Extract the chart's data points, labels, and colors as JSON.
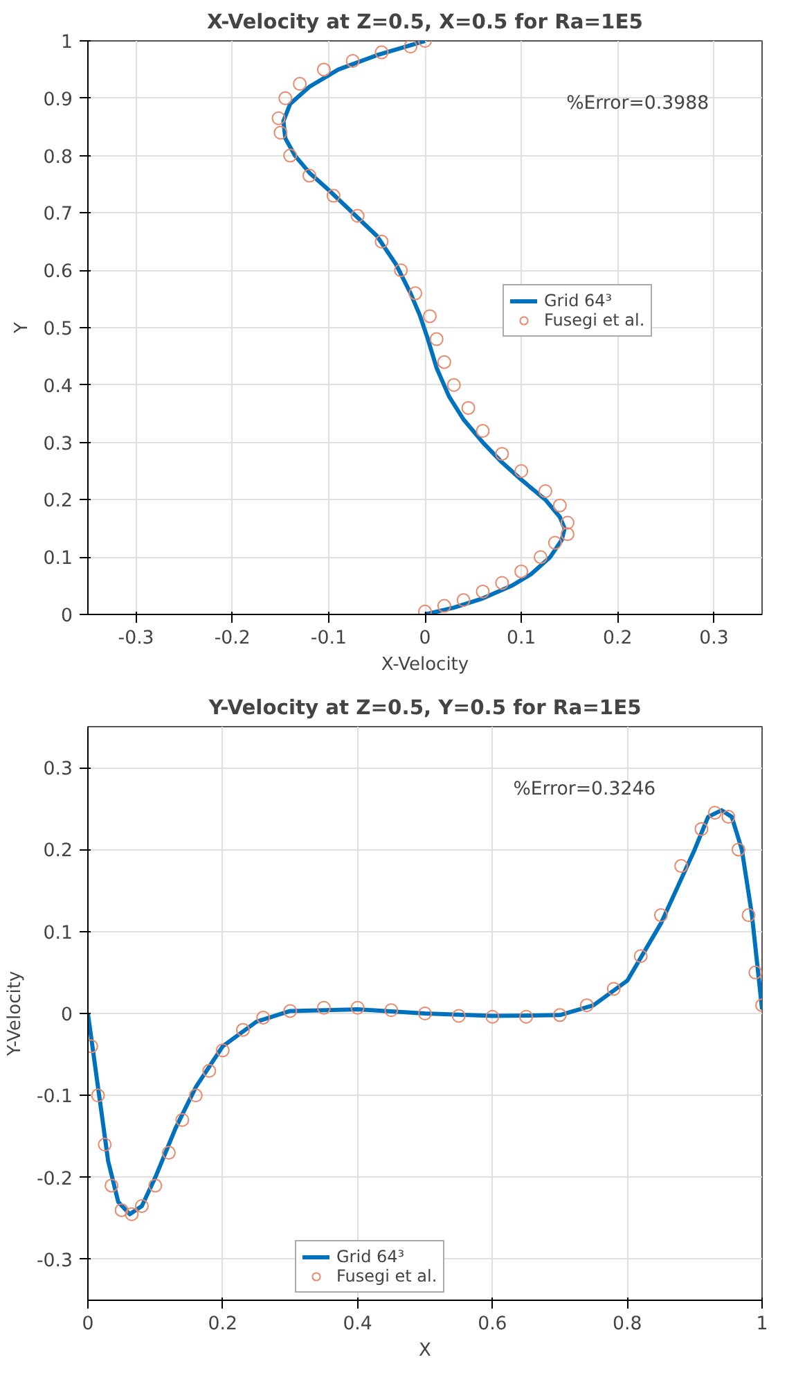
{
  "chart_data": [
    {
      "type": "line",
      "title": "X-Velocity at Z=0.5, X=0.5 for Ra=1E5",
      "xlabel": "X-Velocity",
      "ylabel": "Y",
      "xlim": [
        -0.35,
        0.35
      ],
      "ylim": [
        0,
        1
      ],
      "xticks": [
        -0.3,
        -0.2,
        -0.1,
        0,
        0.1,
        0.2,
        0.3
      ],
      "yticks": [
        0,
        0.1,
        0.2,
        0.3,
        0.4,
        0.5,
        0.6,
        0.7,
        0.8,
        0.9,
        1
      ],
      "grid": true,
      "legend": "right",
      "annotations": [
        "%Error=0.3988"
      ],
      "series": [
        {
          "name": "Grid 64³",
          "color": "#0072bd",
          "marker": "none",
          "line_style": "solid",
          "x": [
            0,
            0.03,
            0.06,
            0.09,
            0.11,
            0.13,
            0.142,
            0.145,
            0.14,
            0.125,
            0.1,
            0.08,
            0.06,
            0.04,
            0.025,
            0.012,
            0.003,
            -0.005,
            -0.015,
            -0.03,
            -0.05,
            -0.075,
            -0.1,
            -0.12,
            -0.135,
            -0.145,
            -0.147,
            -0.14,
            -0.12,
            -0.09,
            -0.05,
            -0.02,
            0
          ],
          "values": [
            0,
            0.012,
            0.028,
            0.05,
            0.07,
            0.1,
            0.13,
            0.15,
            0.17,
            0.2,
            0.235,
            0.265,
            0.3,
            0.34,
            0.38,
            0.43,
            0.48,
            0.52,
            0.56,
            0.61,
            0.66,
            0.7,
            0.74,
            0.77,
            0.8,
            0.83,
            0.86,
            0.89,
            0.92,
            0.95,
            0.975,
            0.99,
            1
          ]
        },
        {
          "name": "Fusegi et al.",
          "type": "scatter",
          "color": "#e8896b",
          "marker": "circle",
          "x": [
            0,
            0.02,
            0.04,
            0.06,
            0.08,
            0.1,
            0.12,
            0.135,
            0.148,
            0.148,
            0.14,
            0.125,
            0.1,
            0.08,
            0.06,
            0.045,
            0.03,
            0.02,
            0.012,
            0.005,
            -0.01,
            -0.025,
            -0.045,
            -0.07,
            -0.095,
            -0.12,
            -0.14,
            -0.15,
            -0.152,
            -0.145,
            -0.13,
            -0.105,
            -0.075,
            -0.045,
            -0.015,
            0
          ],
          "values": [
            0.005,
            0.015,
            0.025,
            0.04,
            0.055,
            0.075,
            0.1,
            0.125,
            0.14,
            0.16,
            0.19,
            0.215,
            0.25,
            0.28,
            0.32,
            0.36,
            0.4,
            0.44,
            0.48,
            0.52,
            0.56,
            0.6,
            0.65,
            0.695,
            0.73,
            0.765,
            0.8,
            0.84,
            0.865,
            0.9,
            0.925,
            0.95,
            0.965,
            0.98,
            0.99,
            1
          ]
        }
      ]
    },
    {
      "type": "line",
      "title": "Y-Velocity at Z=0.5, Y=0.5 for Ra=1E5",
      "xlabel": "X",
      "ylabel": "Y-Velocity",
      "xlim": [
        0,
        1
      ],
      "ylim": [
        -0.35,
        0.35
      ],
      "xticks": [
        0,
        0.2,
        0.4,
        0.6,
        0.8,
        1
      ],
      "yticks": [
        -0.3,
        -0.2,
        -0.1,
        0,
        0.1,
        0.2,
        0.3
      ],
      "grid": true,
      "legend": "bottom",
      "annotations": [
        "%Error=0.3246"
      ],
      "series": [
        {
          "name": "Grid 64³",
          "color": "#0072bd",
          "marker": "none",
          "line_style": "solid",
          "x": [
            0,
            0.01,
            0.02,
            0.03,
            0.045,
            0.062,
            0.08,
            0.1,
            0.13,
            0.16,
            0.2,
            0.25,
            0.3,
            0.4,
            0.5,
            0.6,
            0.7,
            0.75,
            0.8,
            0.85,
            0.9,
            0.92,
            0.94,
            0.955,
            0.97,
            0.985,
            1
          ],
          "values": [
            0,
            -0.06,
            -0.12,
            -0.18,
            -0.23,
            -0.245,
            -0.235,
            -0.2,
            -0.14,
            -0.09,
            -0.04,
            -0.01,
            0.003,
            0.005,
            0,
            -0.003,
            -0.002,
            0.01,
            0.04,
            0.11,
            0.2,
            0.24,
            0.248,
            0.24,
            0.2,
            0.12,
            0.005
          ]
        },
        {
          "name": "Fusegi et al.",
          "type": "scatter",
          "color": "#e8896b",
          "marker": "circle",
          "x": [
            0.005,
            0.015,
            0.025,
            0.035,
            0.05,
            0.065,
            0.08,
            0.1,
            0.12,
            0.14,
            0.16,
            0.18,
            0.2,
            0.23,
            0.26,
            0.3,
            0.35,
            0.4,
            0.45,
            0.5,
            0.55,
            0.6,
            0.65,
            0.7,
            0.74,
            0.78,
            0.82,
            0.85,
            0.88,
            0.91,
            0.93,
            0.95,
            0.965,
            0.98,
            0.99,
            1
          ],
          "values": [
            -0.04,
            -0.1,
            -0.16,
            -0.21,
            -0.24,
            -0.245,
            -0.235,
            -0.21,
            -0.17,
            -0.13,
            -0.1,
            -0.07,
            -0.045,
            -0.02,
            -0.005,
            0.003,
            0.007,
            0.007,
            0.004,
            0.0,
            -0.003,
            -0.004,
            -0.004,
            -0.002,
            0.01,
            0.03,
            0.07,
            0.12,
            0.18,
            0.225,
            0.245,
            0.24,
            0.2,
            0.12,
            0.05,
            0.01
          ]
        }
      ]
    }
  ]
}
